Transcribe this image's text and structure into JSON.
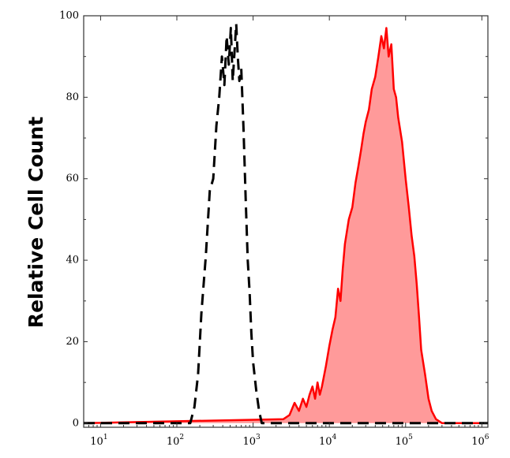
{
  "chart_data": {
    "type": "area",
    "title": "",
    "xlabel": "",
    "ylabel": "Relative Cell Count",
    "x_scale": "log",
    "xlim": [
      6,
      1200000
    ],
    "ylim": [
      -1,
      100
    ],
    "x_tick_labels": [
      {
        "value": 10,
        "base": "10",
        "exp": "1"
      },
      {
        "value": 100,
        "base": "10",
        "exp": "2"
      },
      {
        "value": 1000,
        "base": "10",
        "exp": "3"
      },
      {
        "value": 10000,
        "base": "10",
        "exp": "4"
      },
      {
        "value": 100000,
        "base": "10",
        "exp": "5"
      },
      {
        "value": 1000000,
        "base": "10",
        "exp": "6"
      }
    ],
    "y_ticks": [
      0,
      20,
      40,
      60,
      80,
      100
    ],
    "y_tick_labels": [
      "0",
      "20",
      "40",
      "60",
      "80",
      "100"
    ],
    "grid": false,
    "legend": "none",
    "series": [
      {
        "style": "dashed",
        "color": "#000000",
        "fill": "none",
        "x": [
          6,
          150,
          170,
          190,
          210,
          240,
          270,
          300,
          330,
          360,
          390,
          420,
          450,
          480,
          510,
          540,
          570,
          600,
          630,
          660,
          700,
          750,
          800,
          850,
          900,
          950,
          1000,
          1100,
          1200,
          1300,
          1500,
          1200000
        ],
        "y": [
          0,
          0,
          4,
          12,
          27,
          41,
          57,
          60,
          73,
          80,
          90,
          83,
          95,
          88,
          97,
          84,
          91,
          98,
          90,
          84,
          87,
          72,
          55,
          40,
          32,
          22,
          15,
          8,
          3,
          0,
          0,
          0
        ]
      },
      {
        "style": "solid",
        "color": "#ff0000",
        "fill": "#ff9a9a",
        "x": [
          6,
          2500,
          3000,
          3500,
          4000,
          4500,
          5000,
          5500,
          6000,
          6500,
          7000,
          7500,
          8000,
          9000,
          10000,
          11000,
          12000,
          13000,
          14000,
          15000,
          16000,
          18000,
          20000,
          22000,
          24000,
          26000,
          28000,
          30000,
          33000,
          36000,
          40000,
          44000,
          48000,
          52000,
          56000,
          60000,
          65000,
          70000,
          75000,
          80000,
          90000,
          100000,
          110000,
          120000,
          130000,
          140000,
          150000,
          160000,
          180000,
          200000,
          220000,
          250000,
          300000,
          1200000
        ],
        "y": [
          0,
          1,
          2,
          5,
          3,
          6,
          4,
          7,
          9,
          6,
          10,
          7,
          9,
          14,
          19,
          23,
          26,
          33,
          30,
          38,
          44,
          50,
          53,
          59,
          63,
          67,
          71,
          74,
          77,
          82,
          85,
          90,
          95,
          92,
          97,
          90,
          93,
          82,
          80,
          75,
          69,
          60,
          53,
          46,
          41,
          34,
          26,
          18,
          12,
          6,
          3,
          1,
          0,
          0
        ]
      }
    ]
  }
}
